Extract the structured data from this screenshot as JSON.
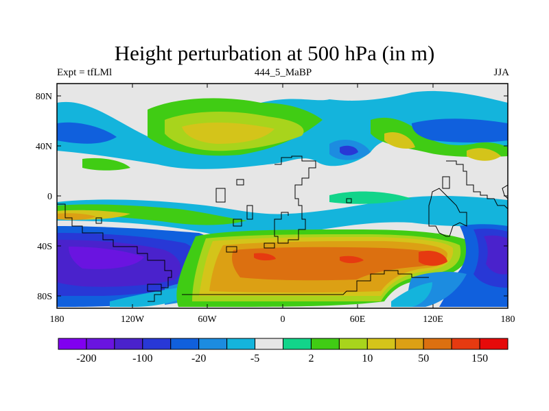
{
  "title": "Height perturbation at 500 hPa (in m)",
  "subtitle_left": "Expt = tfLMl",
  "subtitle_center": "444_5_MaBP",
  "subtitle_right": "JJA",
  "axes": {
    "x_ticks": [
      "180",
      "120W",
      "60W",
      "0",
      "60E",
      "120E",
      "180"
    ],
    "y_ticks": [
      "80N",
      "40N",
      "0",
      "40S",
      "80S"
    ]
  },
  "colorbar": {
    "colors": [
      "#8000f0",
      "#6a14e0",
      "#4a22cc",
      "#2838d6",
      "#1060dd",
      "#1c8ce0",
      "#14b4dc",
      "#e6e6e6",
      "#12d48a",
      "#40cc14",
      "#a8d41c",
      "#d4c41a",
      "#dca014",
      "#dc7010",
      "#e63a10",
      "#e60a0a"
    ],
    "labels": [
      "-200",
      "-100",
      "-20",
      "-5",
      "2",
      "10",
      "50",
      "150"
    ]
  },
  "colors": {
    "missing_background": "#e6e6e6",
    "coastline": "#000000"
  }
}
